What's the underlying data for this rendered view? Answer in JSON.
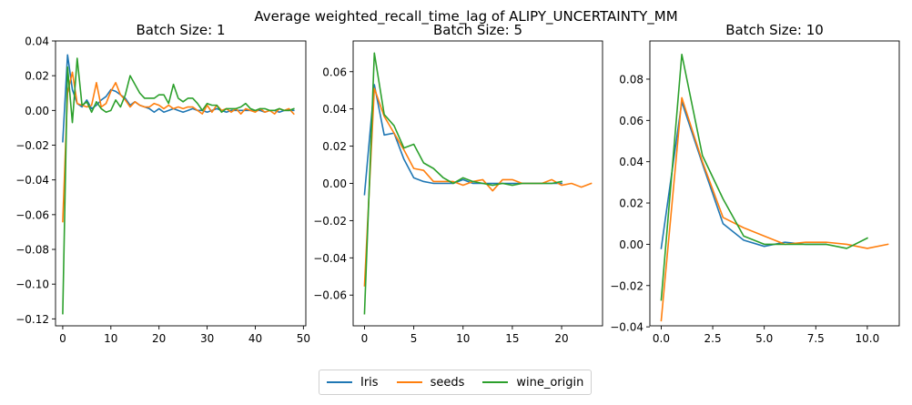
{
  "figure": {
    "suptitle": "Average weighted_recall_time_lag of ALIPY_UNCERTAINTY_MM",
    "legend_placement": "bottom-center"
  },
  "legend": [
    {
      "name": "Iris",
      "color": "#1f77b4"
    },
    {
      "name": "seeds",
      "color": "#ff7f0e"
    },
    {
      "name": "wine_origin",
      "color": "#2ca02c"
    }
  ],
  "chart_data": [
    {
      "type": "line",
      "title": "Batch Size: 1",
      "xlim": [
        -1.5,
        50.5
      ],
      "ylim": [
        -0.124,
        0.04
      ],
      "xticks": [
        0,
        10,
        20,
        30,
        40,
        50
      ],
      "yticks": [
        -0.12,
        -0.1,
        -0.08,
        -0.06,
        -0.04,
        -0.02,
        0.0,
        0.02,
        0.04
      ],
      "ytick_labels": [
        "−0.12",
        "−0.10",
        "−0.08",
        "−0.06",
        "−0.04",
        "−0.02",
        "0.00",
        "0.02",
        "0.04"
      ],
      "grid": false,
      "series": [
        {
          "name": "Iris",
          "color": "#1f77b4",
          "x": [
            0,
            1,
            2,
            3,
            4,
            5,
            6,
            7,
            8,
            9,
            10,
            11,
            12,
            13,
            14,
            15,
            16,
            17,
            18,
            19,
            20,
            21,
            22,
            23,
            24,
            25,
            26,
            27,
            28,
            29,
            30,
            31,
            32,
            33,
            34,
            35,
            36,
            37,
            38,
            39,
            40,
            41,
            42,
            43,
            44,
            45,
            46,
            47,
            48
          ],
          "y": [
            -0.018,
            0.032,
            0.012,
            0.004,
            0.002,
            0.006,
            0.001,
            0.003,
            0.006,
            0.008,
            0.012,
            0.011,
            0.009,
            0.007,
            0.003,
            0.005,
            0.003,
            0.002,
            0.001,
            -0.001,
            0.001,
            -0.001,
            0.0,
            0.001,
            0.0,
            -0.001,
            0.0,
            0.001,
            0.0,
            0.0,
            -0.001,
            0.0,
            0.001,
            0.0,
            -0.001,
            0.0,
            0.0,
            0.0,
            0.0,
            0.0,
            0.0,
            0.0,
            -0.001,
            0.0,
            0.0,
            -0.001,
            0.0,
            0.0,
            0.0
          ]
        },
        {
          "name": "seeds",
          "color": "#ff7f0e",
          "x": [
            0,
            1,
            2,
            3,
            4,
            5,
            6,
            7,
            8,
            9,
            10,
            11,
            12,
            13,
            14,
            15,
            16,
            17,
            18,
            19,
            20,
            21,
            22,
            23,
            24,
            25,
            26,
            27,
            28,
            29,
            30,
            31,
            32,
            33,
            34,
            35,
            36,
            37,
            38,
            39,
            40,
            41,
            42,
            43,
            44,
            45,
            46,
            47,
            48
          ],
          "y": [
            -0.064,
            0.01,
            0.022,
            0.004,
            0.003,
            0.002,
            0.003,
            0.016,
            0.002,
            0.004,
            0.011,
            0.016,
            0.009,
            0.006,
            0.002,
            0.005,
            0.003,
            0.002,
            0.002,
            0.004,
            0.003,
            0.001,
            0.003,
            0.001,
            0.002,
            0.001,
            0.002,
            0.002,
            0.0,
            -0.002,
            0.003,
            -0.001,
            0.003,
            0.0,
            0.001,
            -0.001,
            0.001,
            -0.002,
            0.001,
            0.0,
            -0.001,
            0.001,
            -0.001,
            0.0,
            -0.002,
            0.001,
            0.0,
            0.001,
            -0.002
          ]
        },
        {
          "name": "wine_origin",
          "color": "#2ca02c",
          "x": [
            0,
            1,
            2,
            3,
            4,
            5,
            6,
            7,
            8,
            9,
            10,
            11,
            12,
            13,
            14,
            15,
            16,
            17,
            18,
            19,
            20,
            21,
            22,
            23,
            24,
            25,
            26,
            27,
            28,
            29,
            30,
            31,
            32,
            33,
            34,
            35,
            36,
            37,
            38,
            39,
            40,
            41,
            42,
            43,
            44,
            45,
            46,
            47,
            48
          ],
          "y": [
            -0.117,
            0.025,
            -0.007,
            0.03,
            0.003,
            0.005,
            -0.001,
            0.005,
            0.001,
            -0.001,
            0.0,
            0.006,
            0.002,
            0.009,
            0.02,
            0.015,
            0.01,
            0.007,
            0.007,
            0.007,
            0.009,
            0.009,
            0.004,
            0.015,
            0.007,
            0.005,
            0.007,
            0.007,
            0.004,
            0.0,
            0.004,
            0.003,
            0.003,
            -0.001,
            0.001,
            0.001,
            0.001,
            0.002,
            0.004,
            0.001,
            0.0,
            0.001,
            0.001,
            0.0,
            0.0,
            0.001,
            0.0,
            0.0,
            0.001
          ]
        }
      ]
    },
    {
      "type": "line",
      "title": "Batch Size: 5",
      "xlim": [
        -1.15,
        24.15
      ],
      "ylim": [
        -0.0765,
        0.0765
      ],
      "xticks": [
        0,
        5,
        10,
        15,
        20
      ],
      "yticks": [
        -0.06,
        -0.04,
        -0.02,
        0.0,
        0.02,
        0.04,
        0.06
      ],
      "ytick_labels": [
        "−0.06",
        "−0.04",
        "−0.02",
        "0.00",
        "0.02",
        "0.04",
        "0.06"
      ],
      "grid": false,
      "series": [
        {
          "name": "Iris",
          "color": "#1f77b4",
          "x": [
            0,
            1,
            2,
            3,
            4,
            5,
            6,
            7,
            8,
            9,
            10,
            11,
            12,
            13,
            14,
            15,
            16,
            17,
            18,
            19,
            20
          ],
          "y": [
            -0.006,
            0.053,
            0.026,
            0.027,
            0.013,
            0.003,
            0.001,
            0.0,
            0.0,
            0.0,
            0.002,
            0.0,
            0.0,
            0.0,
            0.0,
            0.0,
            0.0,
            0.0,
            0.0,
            0.0,
            0.0
          ]
        },
        {
          "name": "seeds",
          "color": "#ff7f0e",
          "x": [
            0,
            1,
            2,
            3,
            4,
            5,
            6,
            7,
            8,
            9,
            10,
            11,
            12,
            13,
            14,
            15,
            16,
            17,
            18,
            19,
            20,
            21,
            22,
            23
          ],
          "y": [
            -0.055,
            0.051,
            0.036,
            0.027,
            0.018,
            0.008,
            0.007,
            0.001,
            0.001,
            0.001,
            -0.001,
            0.001,
            0.002,
            -0.004,
            0.002,
            0.002,
            0.0,
            0.0,
            0.0,
            0.002,
            -0.001,
            0.0,
            -0.002,
            0.0
          ]
        },
        {
          "name": "wine_origin",
          "color": "#2ca02c",
          "x": [
            0,
            1,
            2,
            3,
            4,
            5,
            6,
            7,
            8,
            9,
            10,
            11,
            12,
            13,
            14,
            15,
            16,
            17,
            18,
            19,
            20
          ],
          "y": [
            -0.07,
            0.07,
            0.037,
            0.031,
            0.019,
            0.021,
            0.011,
            0.008,
            0.003,
            0.0,
            0.003,
            0.001,
            0.0,
            -0.001,
            0.0,
            -0.001,
            0.0,
            0.0,
            0.0,
            0.0,
            0.001
          ]
        }
      ]
    },
    {
      "type": "line",
      "title": "Batch Size: 10",
      "xlim": [
        -0.55,
        11.55
      ],
      "ylim": [
        -0.0395,
        0.0985
      ],
      "xticks": [
        0.0,
        2.5,
        5.0,
        7.5,
        10.0
      ],
      "xtick_labels": [
        "0.0",
        "2.5",
        "5.0",
        "7.5",
        "10.0"
      ],
      "yticks": [
        -0.04,
        -0.02,
        0.0,
        0.02,
        0.04,
        0.06,
        0.08
      ],
      "ytick_labels": [
        "−0.04",
        "−0.02",
        "0.00",
        "0.02",
        "0.04",
        "0.06",
        "0.08"
      ],
      "grid": false,
      "series": [
        {
          "name": "Iris",
          "color": "#1f77b4",
          "x": [
            0,
            1,
            2,
            3,
            4,
            5,
            6,
            7,
            8
          ],
          "y": [
            -0.002,
            0.069,
            0.039,
            0.01,
            0.002,
            -0.001,
            0.001,
            0.0,
            0.0
          ]
        },
        {
          "name": "seeds",
          "color": "#ff7f0e",
          "x": [
            0,
            1,
            2,
            3,
            4,
            5,
            6,
            7,
            8,
            9,
            10,
            11
          ],
          "y": [
            -0.037,
            0.071,
            0.04,
            0.013,
            0.008,
            0.004,
            0.0,
            0.001,
            0.001,
            0.0,
            -0.002,
            0.0
          ]
        },
        {
          "name": "wine_origin",
          "color": "#2ca02c",
          "x": [
            0,
            1,
            2,
            3,
            4,
            5,
            6,
            7,
            8,
            9,
            10
          ],
          "y": [
            -0.027,
            0.092,
            0.043,
            0.022,
            0.004,
            0.0,
            0.0,
            0.0,
            0.0,
            -0.002,
            0.003
          ]
        }
      ]
    }
  ]
}
